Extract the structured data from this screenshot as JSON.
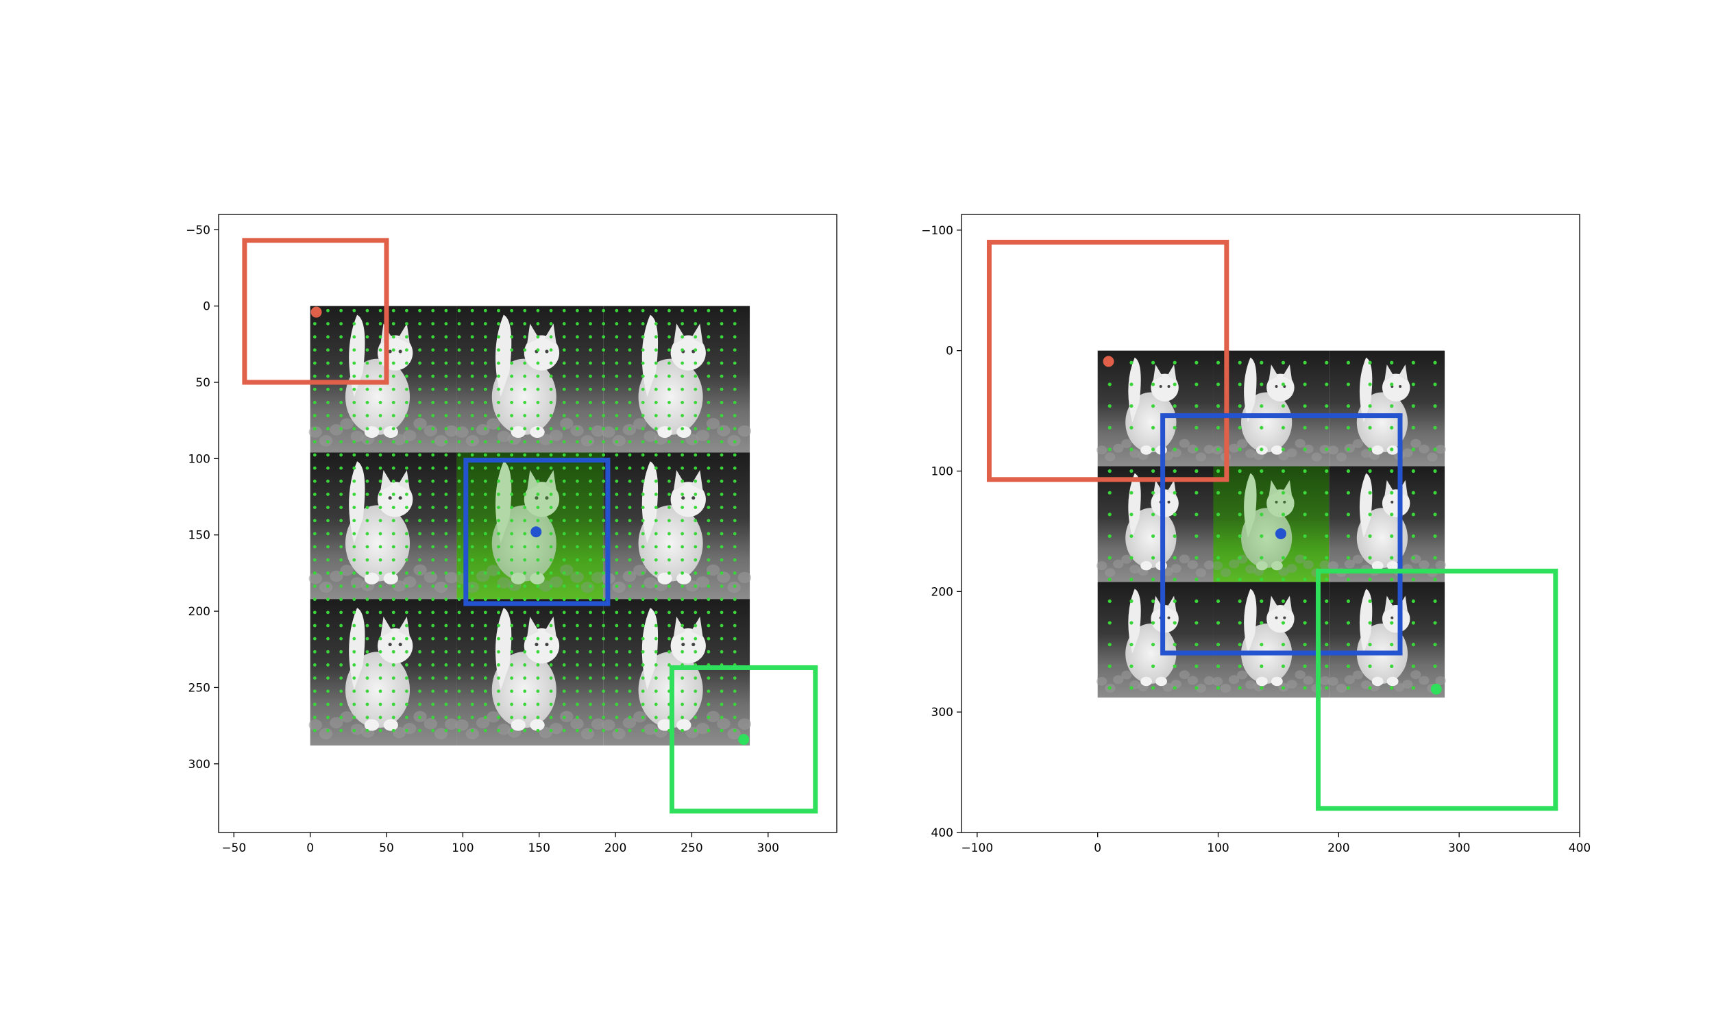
{
  "chart_data": [
    {
      "type": "scatter",
      "xlim": [
        -60,
        345
      ],
      "ylim": [
        345,
        -60
      ],
      "x_ticks": [
        -50,
        0,
        50,
        100,
        150,
        200,
        250,
        300
      ],
      "x_tick_labels": [
        "−50",
        "0",
        "50",
        "100",
        "150",
        "200",
        "250",
        "300"
      ],
      "y_ticks": [
        -50,
        0,
        50,
        100,
        150,
        200,
        250,
        300
      ],
      "y_tick_labels": [
        "−50",
        "0",
        "50",
        "100",
        "150",
        "200",
        "250",
        "300"
      ],
      "grid": false,
      "image_mosaic": {
        "extent": [
          0,
          288,
          0,
          288
        ],
        "tiles": 3,
        "highlight_tile": [
          1,
          1
        ]
      },
      "dot_grid": {
        "x_start": 3,
        "x_end": 285,
        "y_start": 3,
        "y_end": 285,
        "spacing": 8.6,
        "color": "#3ad63a"
      },
      "highlight_tint": "#3fae1f",
      "boxes": [
        {
          "name": "red",
          "x0": -43,
          "y0": -43,
          "x1": 50,
          "y1": 50,
          "color": "#e0604a"
        },
        {
          "name": "blue",
          "x0": 102,
          "y0": 101,
          "x1": 195,
          "y1": 195,
          "color": "#2453d0"
        },
        {
          "name": "green",
          "x0": 237,
          "y0": 237,
          "x1": 331,
          "y1": 331,
          "color": "#2fe05c"
        }
      ],
      "points": [
        {
          "name": "red",
          "x": 4,
          "y": 4,
          "color": "#e0604a"
        },
        {
          "name": "blue",
          "x": 148,
          "y": 148,
          "color": "#2453d0"
        },
        {
          "name": "green",
          "x": 284,
          "y": 284,
          "color": "#2fe05c"
        }
      ]
    },
    {
      "type": "scatter",
      "xlim": [
        -113,
        400
      ],
      "ylim": [
        400,
        -113
      ],
      "x_ticks": [
        -100,
        0,
        100,
        200,
        300,
        400
      ],
      "x_tick_labels": [
        "−100",
        "0",
        "100",
        "200",
        "300",
        "400"
      ],
      "y_ticks": [
        -100,
        0,
        100,
        200,
        300,
        400
      ],
      "y_tick_labels": [
        "−100",
        "0",
        "100",
        "200",
        "300",
        "400"
      ],
      "grid": false,
      "image_mosaic": {
        "extent": [
          0,
          288,
          0,
          288
        ],
        "tiles": 3,
        "highlight_tile": [
          1,
          1
        ]
      },
      "dot_grid": {
        "x_start": 10,
        "x_end": 285,
        "y_start": 10,
        "y_end": 285,
        "spacing": 18,
        "color": "#3ad63a"
      },
      "highlight_tint": "#3fae1f",
      "boxes": [
        {
          "name": "red",
          "x0": -90,
          "y0": -90,
          "x1": 107,
          "y1": 107,
          "color": "#e0604a"
        },
        {
          "name": "blue",
          "x0": 54,
          "y0": 54,
          "x1": 251,
          "y1": 251,
          "color": "#2453d0"
        },
        {
          "name": "green",
          "x0": 183,
          "y0": 183,
          "x1": 380,
          "y1": 380,
          "color": "#2fe05c"
        }
      ],
      "points": [
        {
          "name": "red",
          "x": 9,
          "y": 9,
          "color": "#e0604a"
        },
        {
          "name": "blue",
          "x": 152,
          "y": 152,
          "color": "#2453d0"
        },
        {
          "name": "green",
          "x": 281,
          "y": 281,
          "color": "#2fe05c"
        }
      ]
    }
  ]
}
